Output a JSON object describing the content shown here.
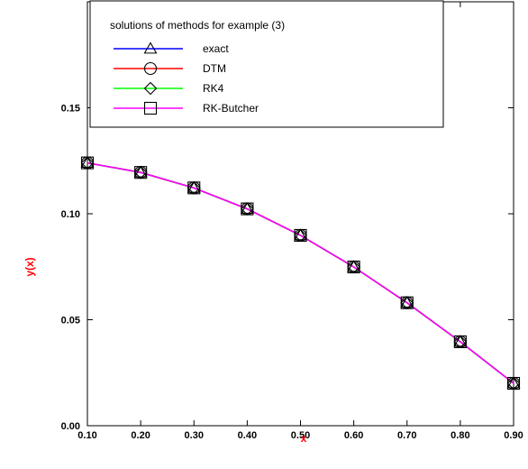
{
  "chart_data": {
    "type": "line",
    "title": "",
    "xlabel": "x",
    "ylabel": "y(x)",
    "axis_label_color": "#ff0000",
    "xlim": [
      0.1,
      0.9
    ],
    "ylim": [
      0.0,
      0.2
    ],
    "xticks": [
      "0.10",
      "0.20",
      "0.30",
      "0.40",
      "0.50",
      "0.60",
      "0.70",
      "0.80",
      "0.90"
    ],
    "yticks": [
      "0.00",
      "0.05",
      "0.10",
      "0.15"
    ],
    "grid": false,
    "legend": {
      "title": "solutions of methods for example (3)",
      "placement": "top"
    },
    "x": [
      0.1,
      0.2,
      0.3,
      0.4,
      0.5,
      0.6,
      0.7,
      0.8,
      0.9
    ],
    "series": [
      {
        "name": "exact",
        "color": "#0000ff",
        "marker": "triangle",
        "values": [
          0.124,
          0.1195,
          0.1122,
          0.1023,
          0.0898,
          0.0749,
          0.058,
          0.0396,
          0.02
        ]
      },
      {
        "name": "DTM",
        "color": "#ff0000",
        "marker": "circle",
        "values": [
          0.124,
          0.1195,
          0.1122,
          0.1023,
          0.0898,
          0.0749,
          0.058,
          0.0396,
          0.02
        ]
      },
      {
        "name": "RK4",
        "color": "#00ff00",
        "marker": "diamond",
        "values": [
          0.124,
          0.1195,
          0.1122,
          0.1023,
          0.0898,
          0.0749,
          0.058,
          0.0396,
          0.02
        ]
      },
      {
        "name": "RK-Butcher",
        "color": "#ff00ff",
        "marker": "square",
        "values": [
          0.124,
          0.1195,
          0.1122,
          0.1023,
          0.0898,
          0.0749,
          0.058,
          0.0396,
          0.02
        ]
      }
    ]
  }
}
